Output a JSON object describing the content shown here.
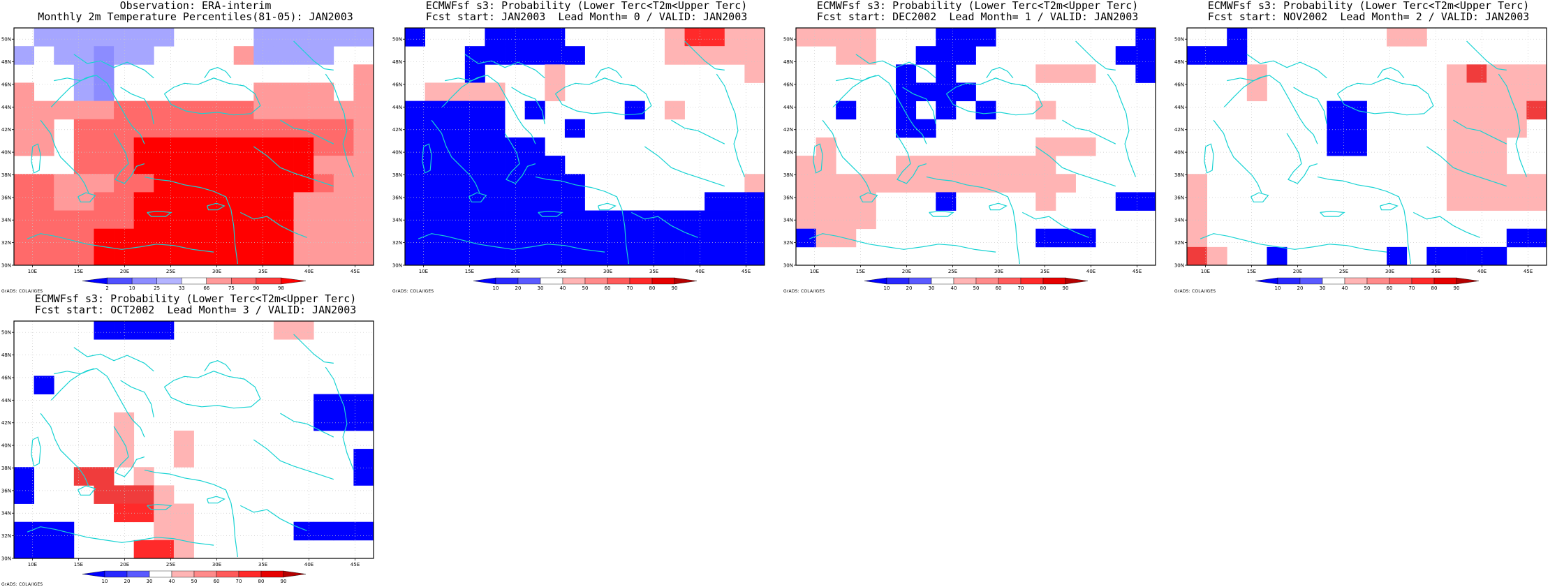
{
  "panels": [
    {
      "id": "obs",
      "title_line1": "Observation: ERA-interim",
      "title_line2": "Monthly 2m Temperature Percentiles(81-05): JAN2003",
      "colorbar": {
        "labels": [
          "2",
          "10",
          "25",
          "33",
          "66",
          "75",
          "90",
          "98"
        ],
        "colors": [
          "#0000ff",
          "#5050ff",
          "#8c8cff",
          "#b4b4ff",
          "#ffffff",
          "#ff9a9a",
          "#ff6a6a",
          "#ff3a3a",
          "#ff0000"
        ]
      },
      "grid": [
        "W K K K K K K K W W W W K K K K K K",
        "K W K K L K K W W W W M K K K K W W",
        "W W W K L W W W W W W W W W W W W M",
        "M W W K L W W W W W W W M M M M W M",
        "M M M M M S S S S S S S M M M M M M",
        "M M W S S S S S S S S S S S S S S M",
        "M M W S S S R R R R R R R R R S S M",
        "W W W S S S R R R R R R R R R M M M",
        "S S M M M S S R R R R R R R R S M M",
        "S S M M S S R R R R R R R R M M M M",
        "S S S S S S R R R R R R R R M M M M",
        "S S S S R R R R R R R R R R M M M M",
        "S S S S R R R R R R R R R R M M M M"
      ]
    },
    {
      "id": "lead0",
      "title_line1": "ECMWFsf s3: Probability (Lower Terc<T2m<Upper Terc)",
      "title_line2": "Fcst start: JAN2003  Lead Month= 0 / VALID: JAN2003",
      "colorbar": {
        "labels": [
          "10",
          "20",
          "30",
          "40",
          "50",
          "60",
          "70",
          "80",
          "90"
        ],
        "colors": [
          "#0000ff",
          "#2828ff",
          "#5a5aff",
          "#ffffff",
          "#ffb4b4",
          "#ff8a8a",
          "#ff5a5a",
          "#ff2a2a",
          "#e60000",
          "#b40000"
        ]
      },
      "grid": [
        "B W W W B B B B W W W W W M R R M M",
        "W W W B B B B B B W W W W M M M M M",
        "W W W B W W W M W W W W W W W W W M",
        "W M M M M W W M W W W W W W W W W W",
        "B B B B B W B W W W W B W M W W W W",
        "B B B B B W W W B W W W W W W W W W",
        "B B B B B B B W W W W W W W W W W W",
        "B B B B B B B B W W W W W W W W W W",
        "B B B B B B B B B W W W W W W W W M",
        "B B B B B B B B B W W W W W W B B B",
        "B B B B B B B B B B B B B B B B B B",
        "B B B B B B B B B B B B B B B B B B",
        "B B B B B B B B B B B B B B B B B B"
      ]
    },
    {
      "id": "lead1",
      "title_line1": "ECMWFsf s3: Probability (Lower Terc<T2m<Upper Terc)",
      "title_line2": "Fcst start: DEC2002  Lead Month= 1 / VALID: JAN2003",
      "colorbar": {
        "labels": [
          "10",
          "20",
          "30",
          "40",
          "50",
          "60",
          "70",
          "80",
          "90"
        ],
        "colors": [
          "#0000ff",
          "#2828ff",
          "#5a5aff",
          "#ffffff",
          "#ffb4b4",
          "#ff8a8a",
          "#ff5a5a",
          "#ff2a2a",
          "#e60000",
          "#b40000"
        ]
      },
      "grid": [
        "M M M M W W W B B B W W W W W W W B",
        "W W M M W W B B B W W W W W W W B B",
        "W W W W W B W B W W W W M M M W W B",
        "W W W W W B B B B W W W W W W W W W",
        "W W B W W B W B W B W W M W W W W W",
        "W W W W W B B W W W W W W W W W W W",
        "W M W W W W W W W W W W M M M W W W",
        "M M W W W M M M M M M M M W W W W W",
        "M M M M M M M M M M M M M M W W W W",
        "M M M M W W W B W W W W M W W W B B",
        "M M M M W W W W W W W W W W W W W W",
        "B M M W W W W W W W W W B B B W W W",
        "W W W W W W W W W W W W W W W W W W"
      ]
    },
    {
      "id": "lead2",
      "title_line1": "ECMWFsf s3: Probability (Lower Terc<T2m<Upper Terc)",
      "title_line2": "Fcst start: NOV2002  Lead Month= 2 / VALID: JAN2003",
      "colorbar": {
        "labels": [
          "10",
          "20",
          "30",
          "40",
          "50",
          "60",
          "70",
          "80",
          "90"
        ],
        "colors": [
          "#0000ff",
          "#2828ff",
          "#5a5aff",
          "#ffffff",
          "#ffb4b4",
          "#ff8a8a",
          "#ff5a5a",
          "#ff2a2a",
          "#e60000",
          "#b40000"
        ]
      },
      "grid": [
        "W W B W W W W W W W M M W W W W W W",
        "B B B W W W W W W W W W W W W W W W",
        "W W W M W W W W W W W W W M D M M M",
        "W W W M W W W W W W W W W M M M M M",
        "W W W W W W W B B W W W W M M M M D",
        "W W W W W W W B B W W W W M M M M W",
        "W W W W W W W B B W W W W M M M W W",
        "W W W W W W W W W W W W W M M M W W",
        "M W W W W W W W W W W W W M M M M M",
        "M W W W W W W W W W W W W M M M M M",
        "M W W W W W W W W W W W W W W W W W",
        "M W W W W W W W W W W W W W W W B B",
        "D M W W B W W W W W B W B B B B W W"
      ]
    },
    {
      "id": "lead3",
      "title_line1": "ECMWFsf s3: Probability (Lower Terc<T2m<Upper Terc)",
      "title_line2": "Fcst start: OCT2002  Lead Month= 3 / VALID: JAN2003",
      "colorbar": {
        "labels": [
          "10",
          "20",
          "30",
          "40",
          "50",
          "60",
          "70",
          "80",
          "90"
        ],
        "colors": [
          "#0000ff",
          "#2828ff",
          "#5a5aff",
          "#ffffff",
          "#ffb4b4",
          "#ff8a8a",
          "#ff5a5a",
          "#ff2a2a",
          "#e60000",
          "#b40000"
        ]
      },
      "grid": [
        "W W W W B B B B W W W W W M M W W W",
        "W W W W W W W W W W W W W W W W W W",
        "W W W W W W W W W W W W W W W W W W",
        "W B W W W W W W W W W W W W W W W W",
        "W W W W W W W W W W W W W W W B B B",
        "W W W W W M W W W W W W W W W B B B",
        "W W W W W M W W M W W W W W W W W W",
        "W W W W W M W W M W W W W W W W W B",
        "B W W D D W M W W W W W W W W W W B",
        "B W W W D D D M W W W W W W W W W W",
        "W W W W W R R M M W W W W W W W W W",
        "B B B W W W W M M W W W W W B B B B",
        "B B B W W W R R M W W W W W W W W W"
      ]
    }
  ]
}
